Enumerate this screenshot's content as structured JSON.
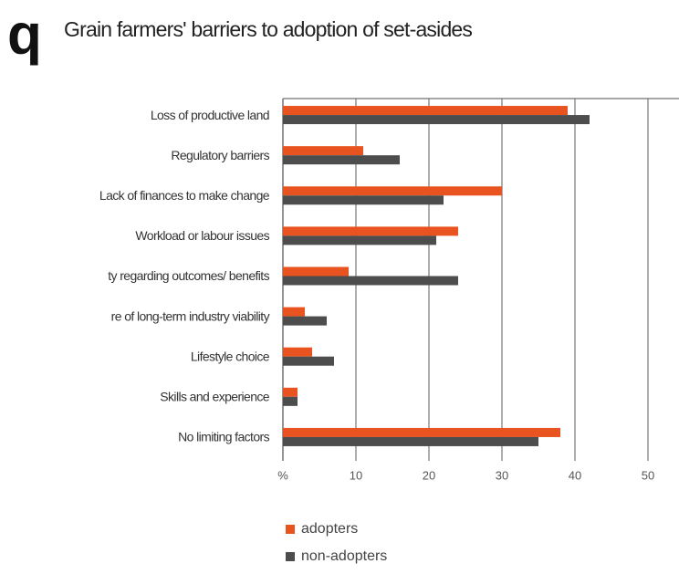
{
  "chart_data": {
    "type": "hbar",
    "badge": "q",
    "title": "Grain farmers' barriers to adoption of set-asides",
    "categories": [
      "Loss of productive land",
      "Regulatory barriers",
      "Lack of finances to make change",
      "Workload or labour issues",
      "ty regarding outcomes/ benefits",
      "re of long-term industry viability",
      "Lifestyle choice",
      "Skills and experience",
      "No limiting factors"
    ],
    "series": [
      {
        "name": "adopters",
        "color": "#e8531f",
        "values": [
          39,
          11,
          30,
          24,
          9,
          3,
          4,
          2,
          38
        ]
      },
      {
        "name": "non-adopters",
        "color": "#4d4d4d",
        "values": [
          42,
          16,
          22,
          21,
          24,
          6,
          7,
          2,
          35
        ]
      }
    ],
    "xlim": [
      0,
      54
    ],
    "xticks": [
      {
        "value": 0,
        "label": "%"
      },
      10,
      20,
      30,
      40,
      50
    ],
    "grid": true
  }
}
